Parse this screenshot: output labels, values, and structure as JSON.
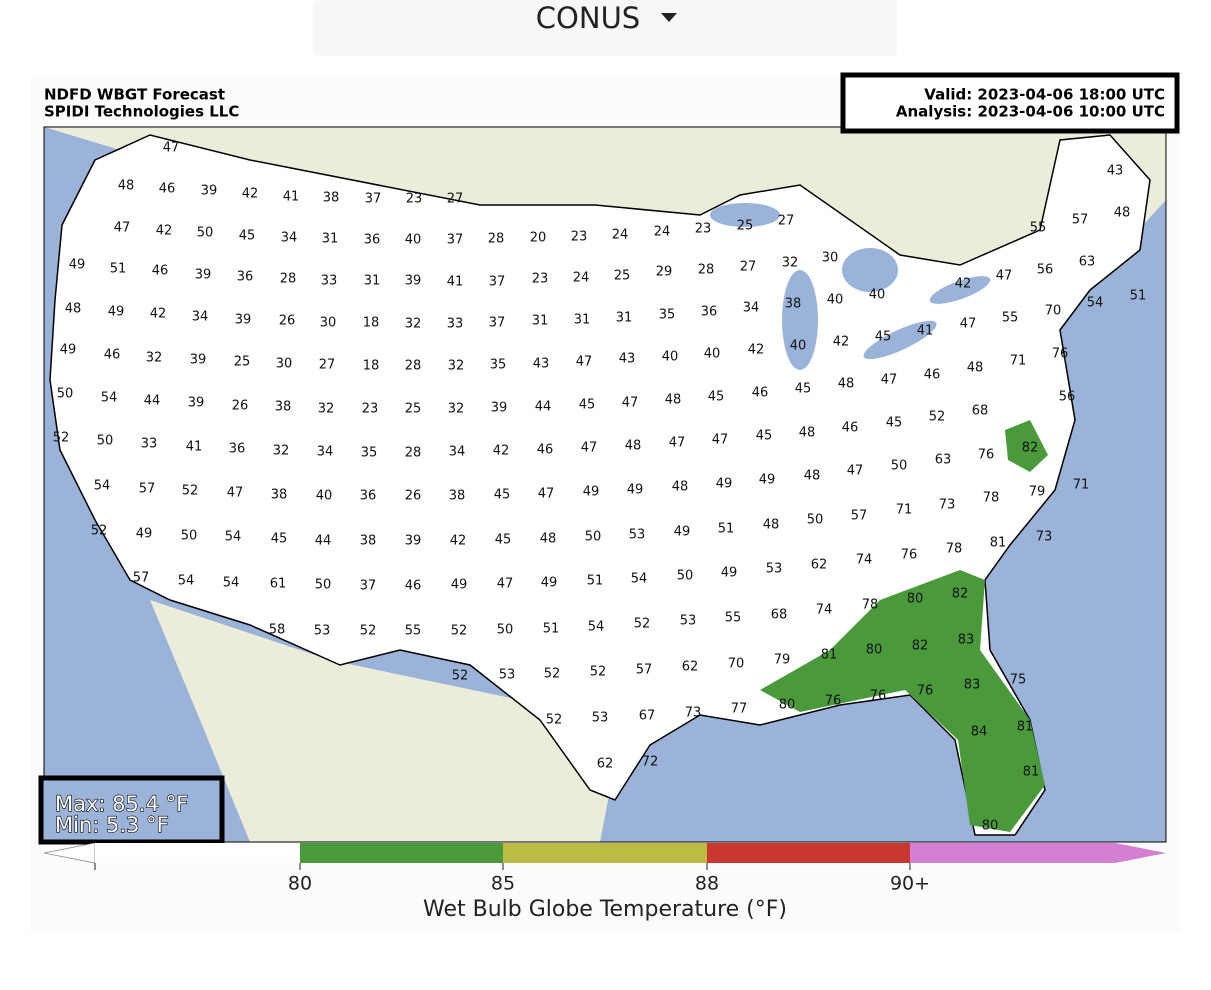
{
  "dropdown": {
    "label": "CONUS"
  },
  "map": {
    "title": "NDFD WBGT Forecast",
    "subtitle": "SPIDI Technologies LLC",
    "valid": "Valid: 2023-04-06 18:00 UTC",
    "analysis": "Analysis: 2023-04-06 10:00 UTC",
    "max": "Max: 85.4 °F",
    "min": "Min: 5.3 °F",
    "rows": [
      [
        47,
        43,
        48,
        57,
        55
      ],
      [
        48,
        46,
        39,
        42,
        41,
        38,
        37,
        23,
        27
      ],
      [
        47,
        42,
        50,
        45,
        34,
        31,
        36,
        40,
        37,
        28,
        20,
        23,
        24,
        24,
        23,
        25,
        27
      ],
      [
        49,
        51,
        46,
        39,
        36,
        28,
        33,
        31,
        39,
        41,
        37,
        23,
        24,
        25,
        29,
        28,
        27,
        32,
        30
      ],
      [
        48,
        49,
        42,
        34,
        39,
        26,
        30,
        18,
        32,
        33,
        37,
        31,
        31,
        31,
        35,
        36,
        34,
        38,
        40,
        40,
        42,
        47,
        56,
        63,
        51
      ],
      [
        49,
        46,
        32,
        39,
        25,
        30,
        27,
        18,
        28,
        32,
        35,
        43,
        47,
        43,
        40,
        40,
        42,
        40,
        42,
        45,
        41,
        47,
        55,
        70,
        54
      ],
      [
        50,
        54,
        44,
        39,
        26,
        38,
        32,
        23,
        25,
        32,
        39,
        44,
        45,
        47,
        48,
        45,
        46,
        45,
        48,
        47,
        46,
        48,
        71,
        76,
        56
      ],
      [
        52,
        50,
        33,
        41,
        36,
        32,
        34,
        35,
        28,
        34,
        42,
        46,
        47,
        48,
        47,
        47,
        45,
        48,
        46,
        45,
        52,
        68
      ],
      [
        54,
        57,
        52,
        47,
        38,
        40,
        36,
        26,
        38,
        45,
        47,
        49,
        49,
        48,
        49,
        49,
        48,
        47,
        50,
        63,
        76,
        82
      ],
      [
        52,
        49,
        50,
        54,
        45,
        44,
        38,
        39,
        42,
        45,
        48,
        50,
        53,
        49,
        51,
        48,
        50,
        57,
        71,
        73,
        78,
        79,
        71
      ],
      [
        57,
        54,
        54,
        61,
        50,
        37,
        46,
        49,
        47,
        49,
        51,
        54,
        50,
        49,
        53,
        62,
        74,
        76,
        78,
        81,
        73
      ],
      [
        58,
        53,
        52,
        55,
        52,
        50,
        51,
        54,
        52,
        53,
        55,
        68,
        74,
        78,
        80,
        82
      ],
      [
        52,
        53,
        52,
        52,
        57,
        62,
        70,
        79,
        81,
        80,
        82,
        83
      ],
      [
        52,
        53,
        67,
        73,
        77,
        80,
        76,
        76,
        76,
        83,
        75
      ],
      [
        62,
        72,
        84,
        81,
        81,
        80
      ]
    ]
  },
  "colorbar": {
    "label": "Wet Bulb Globe Temperature (°F)",
    "ticks": [
      "80",
      "85",
      "88",
      "90+"
    ]
  }
}
